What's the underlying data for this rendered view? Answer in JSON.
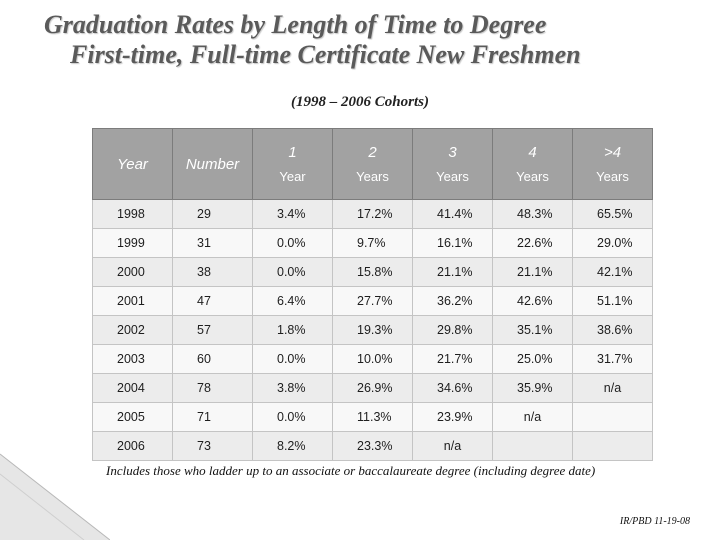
{
  "title": {
    "line1": "Graduation Rates by Length of Time to Degree",
    "line2": "First-time, Full-time Certificate New Freshmen"
  },
  "subtitle": "(1998 – 2006 Cohorts)",
  "table": {
    "headers": [
      {
        "main": "Year"
      },
      {
        "main": "Number"
      },
      {
        "num": "1",
        "unit": "Year"
      },
      {
        "num": "2",
        "unit": "Years"
      },
      {
        "num": "3",
        "unit": "Years"
      },
      {
        "num": "4",
        "unit": "Years"
      },
      {
        "num": ">4",
        "unit": "Years"
      }
    ],
    "rows": [
      [
        "1998",
        "29",
        "3.4%",
        "17.2%",
        "41.4%",
        "48.3%",
        "65.5%"
      ],
      [
        "1999",
        "31",
        "0.0%",
        "9.7%",
        "16.1%",
        "22.6%",
        "29.0%"
      ],
      [
        "2000",
        "38",
        "0.0%",
        "15.8%",
        "21.1%",
        "21.1%",
        "42.1%"
      ],
      [
        "2001",
        "47",
        "6.4%",
        "27.7%",
        "36.2%",
        "42.6%",
        "51.1%"
      ],
      [
        "2002",
        "57",
        "1.8%",
        "19.3%",
        "29.8%",
        "35.1%",
        "38.6%"
      ],
      [
        "2003",
        "60",
        "0.0%",
        "10.0%",
        "21.7%",
        "25.0%",
        "31.7%"
      ],
      [
        "2004",
        "78",
        "3.8%",
        "26.9%",
        "34.6%",
        "35.9%",
        "n/a"
      ],
      [
        "2005",
        "71",
        "0.0%",
        "11.3%",
        "23.9%",
        "n/a",
        ""
      ],
      [
        "2006",
        "73",
        "8.2%",
        "23.3%",
        "n/a",
        "",
        ""
      ]
    ]
  },
  "footnote": "Includes those who ladder up to an associate or baccalaureate degree (including degree date)",
  "source": "IR/PBD 11-19-08"
}
